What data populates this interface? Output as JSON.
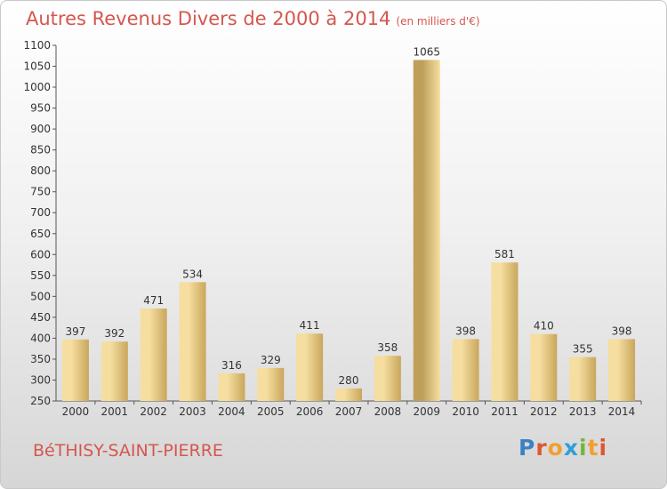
{
  "title": "Autres Revenus Divers de 2000 à 2014",
  "subtitle": "(en milliers d'€)",
  "city": "BéTHISY-SAINT-PIERRE",
  "logo": {
    "text": "Proxiti",
    "colors": [
      "#3b82c4",
      "#e0562e",
      "#f0a030",
      "#2f9fd8",
      "#73b63f",
      "#f0a030",
      "#e0562e"
    ]
  },
  "colors": {
    "title": "#d4574e",
    "bar_light": "#f5dea0",
    "bar_dark": "#c9a65c",
    "highlight_bar_dark": "#bfa05a",
    "axis": "#555555"
  },
  "chart_data": {
    "type": "bar",
    "categories": [
      "2000",
      "2001",
      "2002",
      "2003",
      "2004",
      "2005",
      "2006",
      "2007",
      "2008",
      "2009",
      "2010",
      "2011",
      "2012",
      "2013",
      "2014"
    ],
    "values": [
      397,
      392,
      471,
      534,
      316,
      329,
      411,
      280,
      358,
      1065,
      398,
      581,
      410,
      355,
      398
    ],
    "data_labels": [
      "397",
      "392",
      "471",
      "534",
      "316",
      "329",
      "411",
      "280",
      "358",
      "1065",
      "398",
      "581",
      "410",
      "355",
      "398"
    ],
    "ylim": [
      250,
      1100
    ],
    "yticks": [
      250,
      300,
      350,
      400,
      450,
      500,
      550,
      600,
      650,
      700,
      750,
      800,
      850,
      900,
      950,
      1000,
      1050,
      1100
    ],
    "grid": false,
    "legend": "none"
  }
}
